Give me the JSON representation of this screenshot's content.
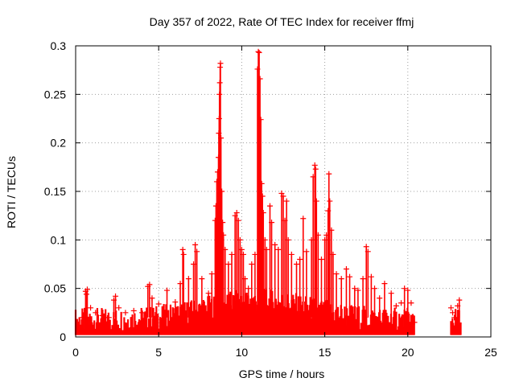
{
  "chart_data": {
    "type": "scatter",
    "title": "Day 357 of 2022, Rate Of TEC Index for receiver ffmj",
    "xlabel": "GPS time / hours",
    "ylabel": "ROTI / TECUs",
    "xlim": [
      0,
      25
    ],
    "ylim": [
      0,
      0.3
    ],
    "x_ticks": [
      "0",
      "5",
      "10",
      "15",
      "20",
      "25"
    ],
    "y_ticks": [
      "0",
      "0.05",
      "0.1",
      "0.15",
      "0.2",
      "0.25",
      "0.3"
    ],
    "grid": true,
    "marker": "+",
    "series": [
      {
        "color": "#ff0000",
        "points": [
          [
            0.2,
            0.012
          ],
          [
            0.4,
            0.02
          ],
          [
            0.6,
            0.047
          ],
          [
            0.65,
            0.044
          ],
          [
            0.7,
            0.049
          ],
          [
            0.9,
            0.03
          ],
          [
            1.2,
            0.025
          ],
          [
            1.6,
            0.022
          ],
          [
            2.0,
            0.02
          ],
          [
            2.3,
            0.038
          ],
          [
            2.4,
            0.042
          ],
          [
            2.6,
            0.03
          ],
          [
            3.0,
            0.025
          ],
          [
            3.5,
            0.027
          ],
          [
            4.0,
            0.025
          ],
          [
            4.35,
            0.052
          ],
          [
            4.45,
            0.054
          ],
          [
            4.6,
            0.04
          ],
          [
            5.0,
            0.034
          ],
          [
            5.5,
            0.048
          ],
          [
            6.0,
            0.036
          ],
          [
            6.3,
            0.055
          ],
          [
            6.45,
            0.09
          ],
          [
            6.5,
            0.085
          ],
          [
            6.8,
            0.06
          ],
          [
            7.1,
            0.075
          ],
          [
            7.2,
            0.095
          ],
          [
            7.3,
            0.088
          ],
          [
            7.6,
            0.06
          ],
          [
            8.0,
            0.045
          ],
          [
            8.2,
            0.065
          ],
          [
            8.4,
            0.12
          ],
          [
            8.45,
            0.135
          ],
          [
            8.5,
            0.16
          ],
          [
            8.55,
            0.17
          ],
          [
            8.6,
            0.185
          ],
          [
            8.62,
            0.21
          ],
          [
            8.64,
            0.225
          ],
          [
            8.66,
            0.25
          ],
          [
            8.68,
            0.262
          ],
          [
            8.7,
            0.278
          ],
          [
            8.72,
            0.282
          ],
          [
            8.75,
            0.205
          ],
          [
            8.8,
            0.15
          ],
          [
            8.85,
            0.118
          ],
          [
            8.9,
            0.105
          ],
          [
            9.0,
            0.09
          ],
          [
            9.2,
            0.075
          ],
          [
            9.4,
            0.085
          ],
          [
            9.6,
            0.125
          ],
          [
            9.7,
            0.128
          ],
          [
            9.8,
            0.12
          ],
          [
            9.9,
            0.1
          ],
          [
            10.0,
            0.09
          ],
          [
            10.1,
            0.085
          ],
          [
            10.2,
            0.06
          ],
          [
            10.4,
            0.05
          ],
          [
            10.6,
            0.075
          ],
          [
            10.8,
            0.085
          ],
          [
            10.95,
            0.276
          ],
          [
            11.0,
            0.294
          ],
          [
            11.05,
            0.293
          ],
          [
            11.1,
            0.266
          ],
          [
            11.15,
            0.224
          ],
          [
            11.2,
            0.158
          ],
          [
            11.25,
            0.145
          ],
          [
            11.3,
            0.128
          ],
          [
            11.4,
            0.1
          ],
          [
            11.5,
            0.09
          ],
          [
            11.7,
            0.135
          ],
          [
            11.8,
            0.118
          ],
          [
            12.0,
            0.095
          ],
          [
            12.2,
            0.09
          ],
          [
            12.4,
            0.148
          ],
          [
            12.5,
            0.145
          ],
          [
            12.6,
            0.12
          ],
          [
            12.7,
            0.14
          ],
          [
            12.8,
            0.1
          ],
          [
            13.0,
            0.085
          ],
          [
            13.3,
            0.075
          ],
          [
            13.5,
            0.08
          ],
          [
            13.7,
            0.122
          ],
          [
            13.9,
            0.088
          ],
          [
            14.2,
            0.1
          ],
          [
            14.3,
            0.165
          ],
          [
            14.4,
            0.177
          ],
          [
            14.45,
            0.173
          ],
          [
            14.5,
            0.14
          ],
          [
            14.6,
            0.105
          ],
          [
            14.8,
            0.08
          ],
          [
            15.0,
            0.1
          ],
          [
            15.1,
            0.105
          ],
          [
            15.2,
            0.13
          ],
          [
            15.25,
            0.168
          ],
          [
            15.3,
            0.14
          ],
          [
            15.4,
            0.11
          ],
          [
            15.5,
            0.085
          ],
          [
            15.7,
            0.065
          ],
          [
            16.0,
            0.06
          ],
          [
            16.3,
            0.07
          ],
          [
            16.5,
            0.062
          ],
          [
            16.8,
            0.05
          ],
          [
            17.0,
            0.048
          ],
          [
            17.3,
            0.06
          ],
          [
            17.5,
            0.093
          ],
          [
            17.6,
            0.088
          ],
          [
            17.8,
            0.062
          ],
          [
            18.0,
            0.05
          ],
          [
            18.3,
            0.04
          ],
          [
            18.6,
            0.055
          ],
          [
            19.0,
            0.045
          ],
          [
            19.3,
            0.032
          ],
          [
            19.6,
            0.035
          ],
          [
            19.8,
            0.05
          ],
          [
            20.0,
            0.048
          ],
          [
            20.2,
            0.035
          ],
          [
            20.4,
            0.015
          ],
          [
            22.6,
            0.03
          ],
          [
            22.7,
            0.025
          ],
          [
            22.8,
            0.02
          ],
          [
            23.0,
            0.032
          ],
          [
            23.1,
            0.038
          ]
        ]
      }
    ]
  }
}
